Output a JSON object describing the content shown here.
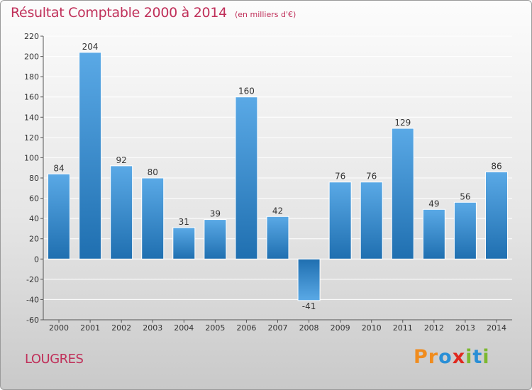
{
  "title": "Résultat Comptable 2000 à 2014",
  "subtitle": "(en milliers d'€)",
  "commune": "LOUGRES",
  "logo": {
    "text": "Proxiti",
    "letters": [
      "P",
      "r",
      "o",
      "x",
      "i",
      "t",
      "i"
    ],
    "colors": [
      "#f08c1e",
      "#f08c1e",
      "#2a8fd6",
      "#e0281e",
      "#7cb82f",
      "#2a8fd6",
      "#7cb82f"
    ]
  },
  "colors": {
    "title": "#c0305a",
    "bar_light": "#5aa9e6",
    "bar_dark": "#1f6fb0",
    "grid": "#ffffff"
  },
  "chart_data": {
    "type": "bar",
    "title": "Résultat Comptable 2000 à 2014",
    "subtitle": "(en milliers d'€)",
    "xlabel": "",
    "ylabel": "",
    "ylim": [
      -60,
      220
    ],
    "yticks": [
      -60,
      -40,
      -20,
      0,
      20,
      40,
      60,
      80,
      100,
      120,
      140,
      160,
      180,
      200,
      220
    ],
    "categories": [
      "2000",
      "2001",
      "2002",
      "2003",
      "2004",
      "2005",
      "2006",
      "2007",
      "2008",
      "2009",
      "2010",
      "2011",
      "2012",
      "2013",
      "2014"
    ],
    "values": [
      84,
      204,
      92,
      80,
      31,
      39,
      160,
      42,
      -41,
      76,
      76,
      129,
      49,
      56,
      86
    ],
    "grid": true,
    "legend": "none"
  }
}
